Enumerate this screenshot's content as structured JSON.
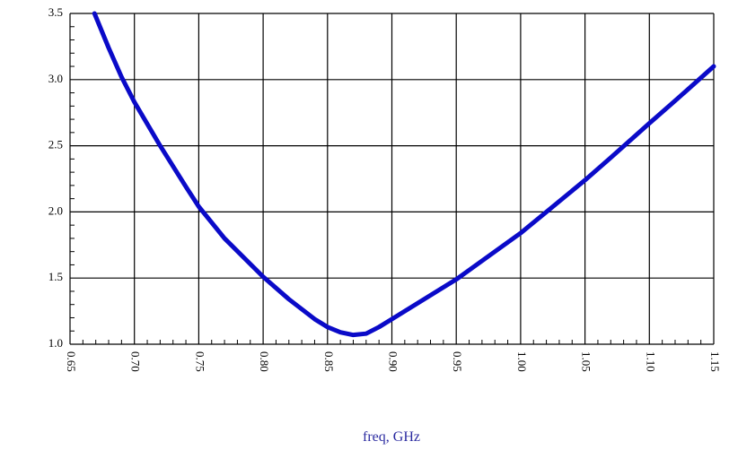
{
  "chart_data": {
    "type": "line",
    "xlabel": "freq, GHz",
    "x": [
      0.669,
      0.68,
      0.69,
      0.7,
      0.72,
      0.74,
      0.75,
      0.77,
      0.8,
      0.82,
      0.84,
      0.85,
      0.86,
      0.87,
      0.88,
      0.89,
      0.9,
      0.92,
      0.94,
      0.95,
      0.97,
      1.0,
      1.02,
      1.05,
      1.07,
      1.1,
      1.12,
      1.15
    ],
    "series": [
      {
        "color": "#0a0ac8",
        "values": [
          3.5,
          3.24,
          3.02,
          2.83,
          2.5,
          2.19,
          2.04,
          1.8,
          1.51,
          1.34,
          1.19,
          1.13,
          1.09,
          1.07,
          1.08,
          1.13,
          1.19,
          1.31,
          1.43,
          1.49,
          1.63,
          1.84,
          2.0,
          2.24,
          2.41,
          2.67,
          2.84,
          3.1
        ]
      }
    ],
    "xlim": [
      0.65,
      1.15
    ],
    "xticks": [
      0.65,
      {
        "value": 0.7,
        "label": "0.70"
      },
      0.75,
      {
        "value": 0.8,
        "label": "0.80"
      },
      0.85,
      {
        "value": 0.9,
        "label": "0.90"
      },
      0.95,
      {
        "value": 1,
        "label": "1.00"
      },
      1.05,
      {
        "value": 1.1,
        "label": "1.10"
      },
      1.15
    ],
    "ylim": [
      1,
      3.5
    ],
    "yticks": [
      {
        "value": 1,
        "label": "1.0"
      },
      1.5,
      {
        "value": 2,
        "label": "2.0"
      },
      2.5,
      {
        "value": 3,
        "label": "3.0"
      },
      3.5
    ],
    "minor_divisions": 5,
    "grid": true
  }
}
